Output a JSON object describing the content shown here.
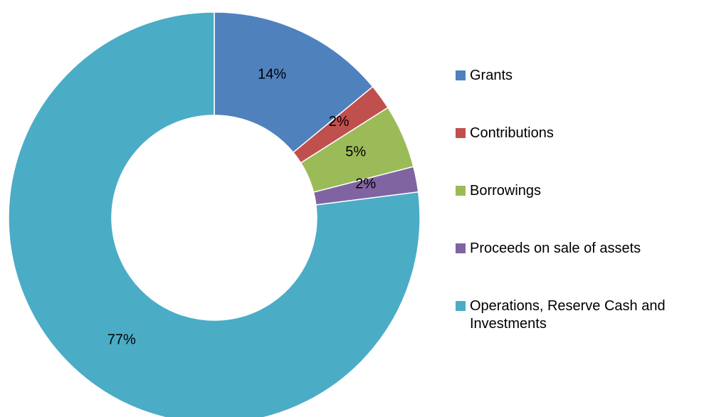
{
  "chart_data": {
    "type": "pie",
    "variant": "doughnut",
    "title": "",
    "series": [
      {
        "name": "Grants",
        "value": 14,
        "label": "14%",
        "color": "#4F81BD"
      },
      {
        "name": "Contributions",
        "value": 2,
        "label": "2%",
        "color": "#C0504D"
      },
      {
        "name": "Borrowings",
        "value": 5,
        "label": "5%",
        "color": "#9BBB59"
      },
      {
        "name": "Proceeds on sale of assets",
        "value": 2,
        "label": "2%",
        "color": "#8064A2"
      },
      {
        "name": "Operations, Reserve Cash and Investments",
        "value": 77,
        "label": "77%",
        "color": "#4BACC6"
      }
    ],
    "legend_position": "right"
  }
}
